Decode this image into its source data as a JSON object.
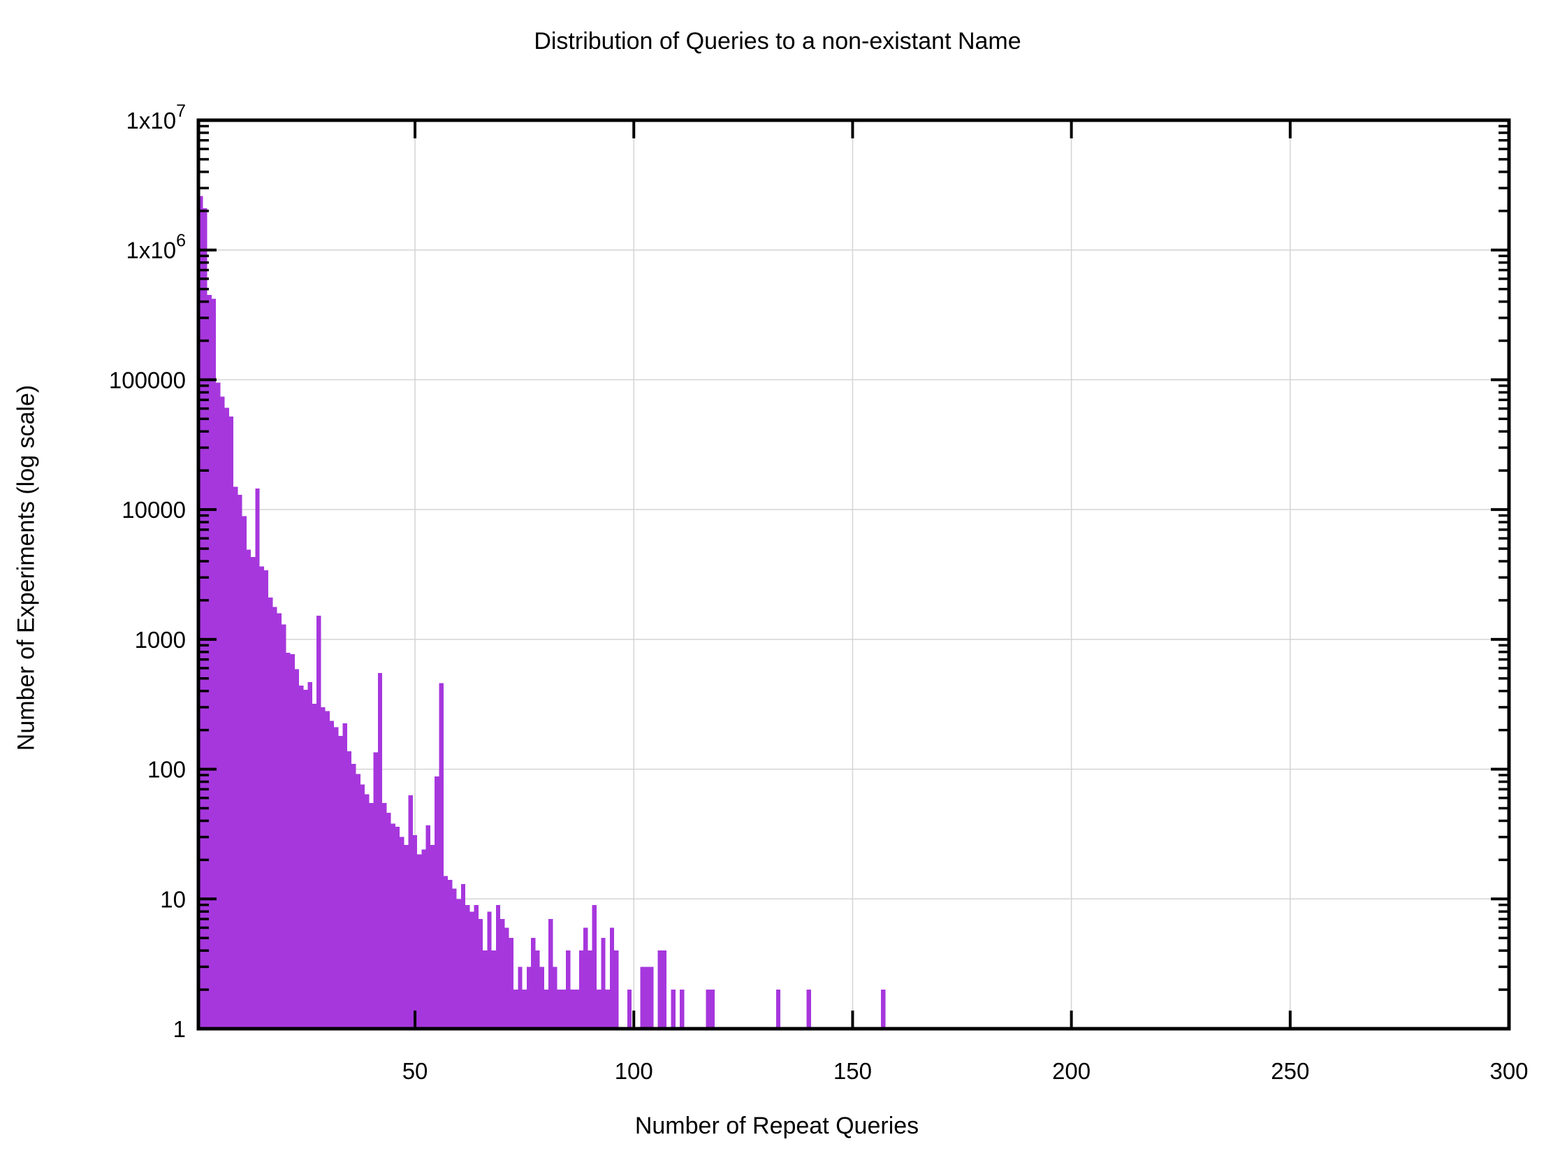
{
  "title": "Distribution of Queries to a non-existant Name",
  "chart_data": {
    "type": "bar",
    "title": "Distribution of Queries to a non-existant Name",
    "xlabel": "Number of Repeat Queries",
    "ylabel": "Number of Experiments (log scale)",
    "x_range": [
      0.5,
      300
    ],
    "y_scale": "log10",
    "y_range": [
      1,
      10000000
    ],
    "grid": true,
    "legend": "none",
    "bar_width": 1,
    "x_ticks": [
      50,
      100,
      150,
      200,
      250,
      300
    ],
    "y_ticks": [
      {
        "value": 1,
        "label": "1"
      },
      {
        "value": 10,
        "label": "10"
      },
      {
        "value": 100,
        "label": "100"
      },
      {
        "value": 1000,
        "label": "1000"
      },
      {
        "value": 10000,
        "label": "10000"
      },
      {
        "value": 100000,
        "label": "100000"
      },
      {
        "value": 1000000,
        "mantissa": "1x10",
        "exponent": "6"
      },
      {
        "value": 10000000,
        "mantissa": "1x10",
        "exponent": "7"
      }
    ],
    "points": [
      [
        1,
        2600000
      ],
      [
        2,
        2100000
      ],
      [
        3,
        450000
      ],
      [
        4,
        420000
      ],
      [
        5,
        95000
      ],
      [
        6,
        74000
      ],
      [
        7,
        61000
      ],
      [
        8,
        52000
      ],
      [
        9,
        15000
      ],
      [
        10,
        13000
      ],
      [
        11,
        8900
      ],
      [
        12,
        4900
      ],
      [
        13,
        4300
      ],
      [
        14,
        14500
      ],
      [
        15,
        3650
      ],
      [
        16,
        3400
      ],
      [
        17,
        2100
      ],
      [
        18,
        1780
      ],
      [
        19,
        1590
      ],
      [
        20,
        1300
      ],
      [
        21,
        790
      ],
      [
        22,
        770
      ],
      [
        23,
        590
      ],
      [
        24,
        440
      ],
      [
        25,
        410
      ],
      [
        26,
        470
      ],
      [
        27,
        320
      ],
      [
        28,
        1520
      ],
      [
        29,
        300
      ],
      [
        30,
        280
      ],
      [
        31,
        235
      ],
      [
        32,
        210
      ],
      [
        33,
        180
      ],
      [
        34,
        225
      ],
      [
        35,
        137
      ],
      [
        36,
        110
      ],
      [
        37,
        92
      ],
      [
        38,
        76
      ],
      [
        39,
        64
      ],
      [
        40,
        55
      ],
      [
        41,
        135
      ],
      [
        42,
        550
      ],
      [
        43,
        55
      ],
      [
        44,
        46
      ],
      [
        45,
        38
      ],
      [
        46,
        36
      ],
      [
        47,
        30
      ],
      [
        48,
        26
      ],
      [
        49,
        63
      ],
      [
        50,
        31
      ],
      [
        51,
        22
      ],
      [
        52,
        24
      ],
      [
        53,
        37
      ],
      [
        54,
        26
      ],
      [
        55,
        88
      ],
      [
        56,
        460
      ],
      [
        57,
        15
      ],
      [
        58,
        14
      ],
      [
        59,
        12
      ],
      [
        60,
        10
      ],
      [
        61,
        13
      ],
      [
        62,
        9
      ],
      [
        63,
        8
      ],
      [
        64,
        9
      ],
      [
        65,
        7
      ],
      [
        66,
        4
      ],
      [
        67,
        8
      ],
      [
        68,
        4
      ],
      [
        69,
        9
      ],
      [
        70,
        7
      ],
      [
        71,
        6
      ],
      [
        72,
        5
      ],
      [
        73,
        2
      ],
      [
        74,
        3
      ],
      [
        75,
        2
      ],
      [
        76,
        3
      ],
      [
        77,
        5
      ],
      [
        78,
        4
      ],
      [
        79,
        3
      ],
      [
        80,
        2
      ],
      [
        81,
        7
      ],
      [
        82,
        3
      ],
      [
        83,
        2
      ],
      [
        84,
        2
      ],
      [
        85,
        4
      ],
      [
        86,
        2
      ],
      [
        87,
        2
      ],
      [
        88,
        4
      ],
      [
        89,
        6
      ],
      [
        90,
        4
      ],
      [
        91,
        9
      ],
      [
        92,
        2
      ],
      [
        93,
        5
      ],
      [
        94,
        2
      ],
      [
        95,
        6
      ],
      [
        96,
        4
      ],
      [
        99,
        2
      ],
      [
        102,
        3
      ],
      [
        103,
        3
      ],
      [
        104,
        3
      ],
      [
        106,
        4
      ],
      [
        107,
        4
      ],
      [
        109,
        2
      ],
      [
        111,
        2
      ],
      [
        117,
        2
      ],
      [
        118,
        2
      ],
      [
        133,
        2
      ],
      [
        140,
        2
      ],
      [
        157,
        2
      ]
    ]
  },
  "colors": {
    "bar_fill": "#a637dd",
    "grid": "#d4d4d4",
    "axis": "#000000",
    "background": "#ffffff"
  }
}
